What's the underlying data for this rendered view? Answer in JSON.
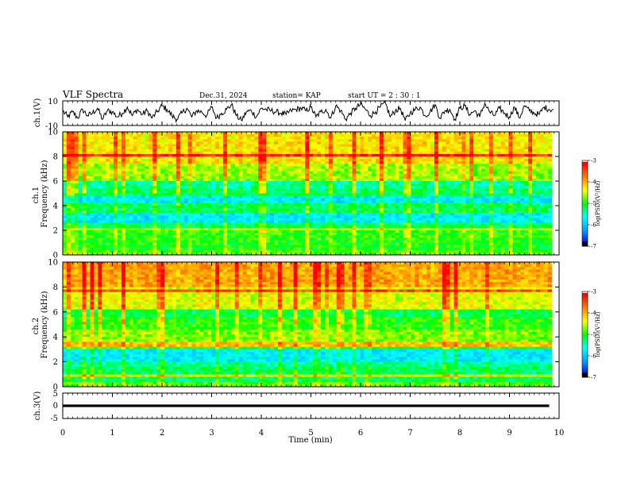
{
  "header": {
    "title": "VLF Spectra",
    "date": "Dec.31, 2024",
    "station": "station= KAP",
    "start": "start  UT =   2 : 30 : 1"
  },
  "chart_data": [
    {
      "id": "waveform-ch1",
      "type": "line",
      "ylabel": "ch.1(V)",
      "ylim": [
        -10,
        10
      ],
      "y_ticks": [
        "10",
        "-10"
      ],
      "xlim": [
        0,
        10
      ],
      "description_free": true,
      "series": [
        {
          "x_step_min": 0.1,
          "values": [
            2,
            -3,
            1,
            -4,
            3,
            -2,
            0,
            4,
            -5,
            2,
            1,
            -3,
            0,
            5,
            -2,
            3,
            -1,
            2,
            -4,
            1,
            6,
            3,
            -2,
            -5,
            0,
            4,
            -3,
            2,
            1,
            -2,
            5,
            -4,
            0,
            3,
            7,
            -2,
            -6,
            1,
            2,
            -3,
            4,
            3,
            2,
            1,
            0,
            -1,
            2,
            3,
            4,
            2,
            5,
            -3,
            1,
            3,
            -4,
            6,
            2,
            -5,
            0,
            4,
            7,
            3,
            -2,
            1,
            5,
            8,
            -3,
            2,
            4,
            -6,
            0,
            3,
            5,
            -2,
            1,
            7,
            -4,
            2,
            3,
            -5,
            4,
            6,
            -1,
            2,
            -3,
            8,
            1,
            -2,
            4,
            0,
            -3,
            5,
            -4,
            6,
            2,
            0,
            -1,
            5,
            3
          ]
        }
      ]
    },
    {
      "id": "spectrogram-ch1",
      "type": "heatmap",
      "ylabel": "ch.1\nFrequency  (kHz)",
      "ylim": [
        0,
        10
      ],
      "y_ticks": [
        "0",
        "2",
        "4",
        "6",
        "8",
        "10"
      ],
      "xlim": [
        0,
        10
      ],
      "colorbar": {
        "label": "log(PSD)(V²/Hz)",
        "range": [
          -7,
          -3
        ],
        "ticks": [
          "-3",
          "-4",
          "-5",
          "-6",
          "-7"
        ]
      },
      "bands_khz_level": [
        {
          "from": 0.0,
          "to": 0.5,
          "level": 0.55
        },
        {
          "from": 0.5,
          "to": 1.2,
          "level": 0.5
        },
        {
          "from": 1.2,
          "to": 2.0,
          "level": 0.52
        },
        {
          "from": 2.0,
          "to": 2.3,
          "level": 0.62
        },
        {
          "from": 2.3,
          "to": 2.7,
          "level": 0.45
        },
        {
          "from": 2.7,
          "to": 3.4,
          "level": 0.3
        },
        {
          "from": 3.4,
          "to": 3.7,
          "level": 0.48
        },
        {
          "from": 3.7,
          "to": 4.3,
          "level": 0.44
        },
        {
          "from": 4.3,
          "to": 4.9,
          "level": 0.3
        },
        {
          "from": 4.9,
          "to": 5.4,
          "level": 0.45
        },
        {
          "from": 5.4,
          "to": 5.9,
          "level": 0.4
        },
        {
          "from": 5.9,
          "to": 7.5,
          "level": 0.6
        },
        {
          "from": 7.5,
          "to": 10.0,
          "level": 0.7
        }
      ]
    },
    {
      "id": "spectrogram-ch2",
      "type": "heatmap",
      "ylabel": "ch.2\nFrequency  (kHz)",
      "ylim": [
        0,
        10
      ],
      "y_ticks": [
        "0",
        "2",
        "4",
        "6",
        "8",
        "10"
      ],
      "xlim": [
        0,
        10
      ],
      "colorbar": {
        "label": "log(PSD)(V²/Hz)",
        "range": [
          -7,
          -3
        ],
        "ticks": [
          "-3",
          "-4",
          "-5",
          "-6",
          "-7"
        ]
      },
      "bands_khz_level": [
        {
          "from": 0.0,
          "to": 0.4,
          "level": 0.55
        },
        {
          "from": 0.4,
          "to": 1.6,
          "level": 0.44
        },
        {
          "from": 1.6,
          "to": 2.1,
          "level": 0.4
        },
        {
          "from": 2.1,
          "to": 3.1,
          "level": 0.3
        },
        {
          "from": 3.1,
          "to": 3.6,
          "level": 0.5
        },
        {
          "from": 3.6,
          "to": 4.6,
          "level": 0.58
        },
        {
          "from": 4.6,
          "to": 5.6,
          "level": 0.52
        },
        {
          "from": 5.6,
          "to": 6.2,
          "level": 0.46
        },
        {
          "from": 6.2,
          "to": 8.0,
          "level": 0.66
        },
        {
          "from": 8.0,
          "to": 10.0,
          "level": 0.78
        }
      ]
    },
    {
      "id": "waveform-ch3",
      "type": "line",
      "ylabel": "ch.3(V)",
      "ylim": [
        -5,
        5
      ],
      "y_ticks": [
        "5",
        "0",
        "-5"
      ],
      "xlim": [
        0,
        10
      ],
      "series": [
        {
          "x": [
            0,
            9.8
          ],
          "values": [
            0,
            0
          ],
          "band_thickness_v": 1.0
        }
      ]
    }
  ],
  "x_axis": {
    "label": "Time  (min)",
    "ticks": [
      "0",
      "1",
      "2",
      "3",
      "4",
      "5",
      "6",
      "7",
      "8",
      "9",
      "10"
    ]
  },
  "colors": {
    "colormap": [
      "#000000",
      "#0000ff",
      "#00a0ff",
      "#00ffff",
      "#00ff00",
      "#ffff00",
      "#ff8000",
      "#ff0000",
      "#ffffff"
    ]
  }
}
